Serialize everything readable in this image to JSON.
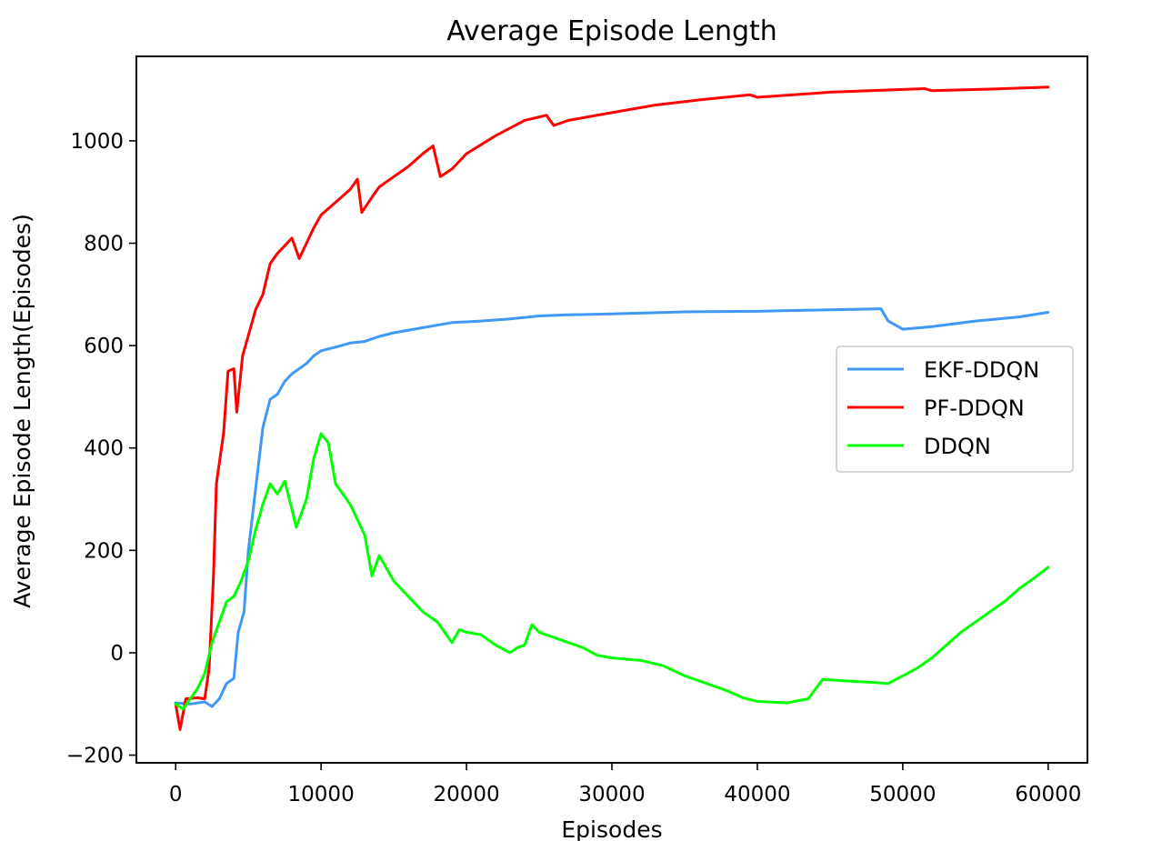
{
  "chart_data": {
    "type": "line",
    "title": "Average Episode Length",
    "xlabel": "Episodes",
    "ylabel": "Average Episode Length(Episodes)",
    "xlim": [
      -2700,
      62700
    ],
    "ylim": [
      -215,
      1165
    ],
    "xticks": [
      0,
      10000,
      20000,
      30000,
      40000,
      50000,
      60000
    ],
    "yticks": [
      -200,
      0,
      200,
      400,
      600,
      800,
      1000
    ],
    "xtick_labels": [
      "0",
      "10000",
      "20000",
      "30000",
      "40000",
      "50000",
      "60000"
    ],
    "ytick_labels": [
      "−200",
      "0",
      "200",
      "400",
      "600",
      "800",
      "1000"
    ],
    "grid": false,
    "legend_position": "center-right",
    "series": [
      {
        "name": "EKF-DDQN",
        "color": "#3f97f6",
        "points": [
          [
            0,
            -98
          ],
          [
            1000,
            -100
          ],
          [
            2000,
            -96
          ],
          [
            2500,
            -105
          ],
          [
            3000,
            -90
          ],
          [
            3500,
            -60
          ],
          [
            4000,
            -50
          ],
          [
            4300,
            40
          ],
          [
            4700,
            80
          ],
          [
            5000,
            200
          ],
          [
            5500,
            320
          ],
          [
            6000,
            440
          ],
          [
            6500,
            495
          ],
          [
            7000,
            505
          ],
          [
            7500,
            530
          ],
          [
            8000,
            545
          ],
          [
            8500,
            555
          ],
          [
            9000,
            565
          ],
          [
            9500,
            580
          ],
          [
            10000,
            590
          ],
          [
            11000,
            597
          ],
          [
            12000,
            605
          ],
          [
            13000,
            608
          ],
          [
            14000,
            618
          ],
          [
            15000,
            625
          ],
          [
            17000,
            635
          ],
          [
            19000,
            645
          ],
          [
            21000,
            648
          ],
          [
            23000,
            652
          ],
          [
            25000,
            658
          ],
          [
            27000,
            660
          ],
          [
            30000,
            662
          ],
          [
            35000,
            666
          ],
          [
            40000,
            667
          ],
          [
            45000,
            670
          ],
          [
            48500,
            672
          ],
          [
            49000,
            648
          ],
          [
            50000,
            632
          ],
          [
            52000,
            637
          ],
          [
            55000,
            648
          ],
          [
            58000,
            656
          ],
          [
            60000,
            665
          ]
        ]
      },
      {
        "name": "PF-DDQN",
        "color": "#ff0000",
        "points": [
          [
            0,
            -100
          ],
          [
            300,
            -150
          ],
          [
            700,
            -90
          ],
          [
            1500,
            -88
          ],
          [
            2000,
            -90
          ],
          [
            2300,
            -30
          ],
          [
            2600,
            150
          ],
          [
            2800,
            330
          ],
          [
            3000,
            370
          ],
          [
            3300,
            430
          ],
          [
            3600,
            550
          ],
          [
            4000,
            555
          ],
          [
            4200,
            470
          ],
          [
            4600,
            580
          ],
          [
            5000,
            620
          ],
          [
            5500,
            670
          ],
          [
            6000,
            700
          ],
          [
            6500,
            760
          ],
          [
            7000,
            780
          ],
          [
            7500,
            795
          ],
          [
            8000,
            810
          ],
          [
            8500,
            770
          ],
          [
            9000,
            800
          ],
          [
            9500,
            830
          ],
          [
            10000,
            855
          ],
          [
            11000,
            880
          ],
          [
            12000,
            905
          ],
          [
            12500,
            925
          ],
          [
            12800,
            860
          ],
          [
            13500,
            890
          ],
          [
            14000,
            910
          ],
          [
            15000,
            930
          ],
          [
            16000,
            950
          ],
          [
            17000,
            975
          ],
          [
            17700,
            990
          ],
          [
            18200,
            930
          ],
          [
            19000,
            945
          ],
          [
            20000,
            975
          ],
          [
            22000,
            1010
          ],
          [
            24000,
            1040
          ],
          [
            25500,
            1050
          ],
          [
            26000,
            1030
          ],
          [
            27000,
            1040
          ],
          [
            30000,
            1055
          ],
          [
            33000,
            1070
          ],
          [
            36000,
            1080
          ],
          [
            39500,
            1090
          ],
          [
            40000,
            1085
          ],
          [
            45000,
            1095
          ],
          [
            51500,
            1102
          ],
          [
            52000,
            1098
          ],
          [
            56000,
            1101
          ],
          [
            60000,
            1105
          ]
        ]
      },
      {
        "name": "DDQN",
        "color": "#00ff00",
        "points": [
          [
            0,
            -100
          ],
          [
            500,
            -110
          ],
          [
            1000,
            -90
          ],
          [
            1500,
            -70
          ],
          [
            2000,
            -40
          ],
          [
            2500,
            20
          ],
          [
            3000,
            60
          ],
          [
            3500,
            100
          ],
          [
            4000,
            110
          ],
          [
            4500,
            140
          ],
          [
            5000,
            180
          ],
          [
            5500,
            240
          ],
          [
            6000,
            290
          ],
          [
            6500,
            330
          ],
          [
            7000,
            310
          ],
          [
            7500,
            335
          ],
          [
            8000,
            280
          ],
          [
            8300,
            245
          ],
          [
            9000,
            300
          ],
          [
            9500,
            380
          ],
          [
            10000,
            428
          ],
          [
            10500,
            410
          ],
          [
            11000,
            330
          ],
          [
            12000,
            290
          ],
          [
            13000,
            230
          ],
          [
            13500,
            150
          ],
          [
            14000,
            190
          ],
          [
            15000,
            140
          ],
          [
            16000,
            110
          ],
          [
            17000,
            80
          ],
          [
            18000,
            60
          ],
          [
            19000,
            20
          ],
          [
            19500,
            45
          ],
          [
            20000,
            40
          ],
          [
            21000,
            35
          ],
          [
            22000,
            15
          ],
          [
            23000,
            0
          ],
          [
            23500,
            10
          ],
          [
            24000,
            15
          ],
          [
            24500,
            55
          ],
          [
            25000,
            40
          ],
          [
            26000,
            30
          ],
          [
            27000,
            20
          ],
          [
            28000,
            10
          ],
          [
            29000,
            -5
          ],
          [
            30000,
            -10
          ],
          [
            32000,
            -15
          ],
          [
            33500,
            -25
          ],
          [
            35000,
            -45
          ],
          [
            36000,
            -55
          ],
          [
            37000,
            -65
          ],
          [
            38000,
            -75
          ],
          [
            39000,
            -88
          ],
          [
            40000,
            -95
          ],
          [
            42000,
            -98
          ],
          [
            43500,
            -90
          ],
          [
            44500,
            -52
          ],
          [
            46000,
            -55
          ],
          [
            48000,
            -58
          ],
          [
            49000,
            -60
          ],
          [
            50000,
            -45
          ],
          [
            51000,
            -30
          ],
          [
            52000,
            -10
          ],
          [
            53000,
            15
          ],
          [
            54000,
            40
          ],
          [
            55000,
            60
          ],
          [
            56000,
            80
          ],
          [
            57000,
            100
          ],
          [
            58000,
            125
          ],
          [
            59000,
            145
          ],
          [
            60000,
            167
          ]
        ]
      }
    ]
  }
}
